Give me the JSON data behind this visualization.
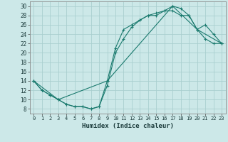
{
  "xlabel": "Humidex (Indice chaleur)",
  "xlim": [
    -0.5,
    23.5
  ],
  "ylim": [
    7,
    31
  ],
  "yticks": [
    8,
    10,
    12,
    14,
    16,
    18,
    20,
    22,
    24,
    26,
    28,
    30
  ],
  "xticks": [
    0,
    1,
    2,
    3,
    4,
    5,
    6,
    7,
    8,
    9,
    10,
    11,
    12,
    13,
    14,
    15,
    16,
    17,
    18,
    19,
    20,
    21,
    22,
    23
  ],
  "xtick_labels": [
    "0",
    "1",
    "2",
    "3",
    "4",
    "5",
    "6",
    "7",
    "8",
    "9",
    "10",
    "11",
    "12",
    "13",
    "14",
    "15",
    "16",
    "17",
    "18",
    "19",
    "20",
    "21",
    "22",
    "23"
  ],
  "bg_color": "#cce8e8",
  "grid_color": "#aacfcf",
  "line_color": "#1a7a6e",
  "line1_x": [
    0,
    1,
    2,
    3,
    4,
    5,
    6,
    7,
    8,
    9,
    10,
    11,
    12,
    13,
    14,
    15,
    16,
    17,
    18,
    19,
    20,
    21,
    22,
    23
  ],
  "line1_y": [
    14,
    12,
    11,
    10,
    9,
    8.5,
    8.5,
    8,
    8.5,
    14,
    21,
    25,
    26,
    27,
    28,
    28,
    29,
    29,
    28,
    28,
    25,
    23,
    22,
    22
  ],
  "line2_x": [
    0,
    1,
    2,
    3,
    4,
    5,
    6,
    7,
    8,
    9,
    10,
    11,
    12,
    13,
    14,
    15,
    16,
    17,
    18,
    19,
    20,
    21,
    22,
    23
  ],
  "line2_y": [
    14,
    12,
    11,
    10,
    9,
    8.5,
    8.5,
    8,
    8.5,
    13,
    20,
    23,
    25.5,
    27,
    28,
    28.5,
    29,
    30,
    29.5,
    28,
    25,
    26,
    24,
    22
  ],
  "line3_x": [
    0,
    3,
    9,
    17,
    20,
    23
  ],
  "line3_y": [
    14,
    10,
    14,
    30,
    25,
    22
  ]
}
